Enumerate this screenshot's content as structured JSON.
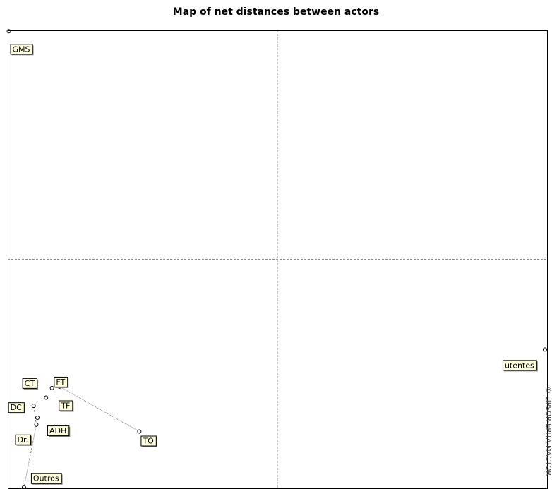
{
  "chart_data": {
    "type": "scatter",
    "title": "Map of net distances between actors",
    "xlabel": "",
    "ylabel": "",
    "grid": false,
    "axis_lines": "dashed center cross",
    "xlim": [
      0,
      100
    ],
    "ylim": [
      0,
      100
    ],
    "points": [
      {
        "label": "GMS",
        "x": 0.2,
        "y": 99.8
      },
      {
        "label": "utentes",
        "x": 99.6,
        "y": 30.3
      },
      {
        "label": "CT",
        "x": 8.2,
        "y": 21.9
      },
      {
        "label": "FT",
        "x": 9.6,
        "y": 22.2
      },
      {
        "label": "TF",
        "x": 7.1,
        "y": 19.8
      },
      {
        "label": "DC",
        "x": 4.8,
        "y": 18.0
      },
      {
        "label": "ADH",
        "x": 5.5,
        "y": 15.4
      },
      {
        "label": "Dr.",
        "x": 5.3,
        "y": 13.9
      },
      {
        "label": "TO",
        "x": 24.4,
        "y": 12.4
      },
      {
        "label": "Outros",
        "x": 3.0,
        "y": 0.2
      }
    ],
    "links": [
      [
        "CT",
        "FT"
      ],
      [
        "FT",
        "TO"
      ],
      [
        "DC",
        "Dr."
      ],
      [
        "Dr.",
        "Outros"
      ]
    ]
  },
  "copyright": "© LIPSOR-EPITA-MACTOR"
}
